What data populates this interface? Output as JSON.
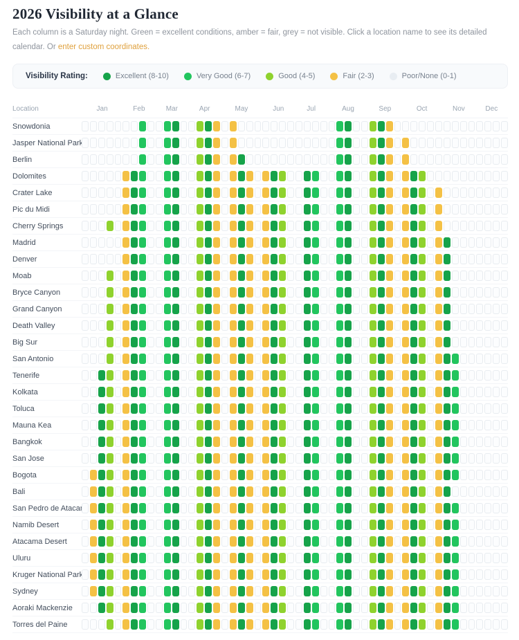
{
  "page_title": "2026 Visibility at a Glance",
  "subtitle": {
    "text": "Each column is a Saturday night. Green = excellent conditions, amber = fair, grey = not visible. Click a location name to see its detailed calendar. Or ",
    "link_text": "enter custom coordinates."
  },
  "legend": {
    "label": "Visibility Rating:",
    "items": [
      {
        "label": "Excellent (8-10)",
        "color": "#16a34a"
      },
      {
        "label": "Very Good (6-7)",
        "color": "#22c55e"
      },
      {
        "label": "Good (4-5)",
        "color": "#8fd22e"
      },
      {
        "label": "Fair (2-3)",
        "color": "#f4c145"
      },
      {
        "label": "Poor/None (0-1)",
        "color": "#e8edf2"
      }
    ]
  },
  "table": {
    "location_header": "Location"
  },
  "chart_data": {
    "type": "heatmap",
    "x_axis_note": "52 columns = Saturday nights of 2026, grouped by month",
    "months": [
      {
        "label": "Jan",
        "weeks": 5
      },
      {
        "label": "Feb",
        "weeks": 4
      },
      {
        "label": "Mar",
        "weeks": 4
      },
      {
        "label": "Apr",
        "weeks": 4
      },
      {
        "label": "May",
        "weeks": 5
      },
      {
        "label": "Jun",
        "weeks": 4
      },
      {
        "label": "Jul",
        "weeks": 4
      },
      {
        "label": "Aug",
        "weeks": 5
      },
      {
        "label": "Sep",
        "weeks": 4
      },
      {
        "label": "Oct",
        "weeks": 5
      },
      {
        "label": "Nov",
        "weeks": 4
      },
      {
        "label": "Dec",
        "weeks": 4
      }
    ],
    "cell_codes": {
      "E": "Excellent (8-10)",
      "V": "Very Good (6-7)",
      "G": "Good (4-5)",
      "F": "Fair (2-3)",
      ".": "Poor/None (0-1)"
    },
    "palette": {
      "E": "#16a34a",
      "V": "#22c55e",
      "G": "#8fd22e",
      "F": "#f4c145"
    },
    "rows": [
      {
        "location": "Snowdonia",
        "cells": ".......V..VE..GEF.F............VE..GEF.............."
      },
      {
        "location": "Jasper National Park",
        "cells": ".......V..VE..GEF.F............VE..GEF.F............"
      },
      {
        "location": "Berlin",
        "cells": ".......V..VE..GEF.FE...........VE..GEF.F............"
      },
      {
        "location": "Dolomites",
        "cells": ".....FEV..VE..GEF.FEF.FEG..EV..VE..GEF.FEG.........."
      },
      {
        "location": "Crater Lake",
        "cells": ".....FEV..VE..GEF.FEF.FEG..EV..VE..GEF.FEG.F........"
      },
      {
        "location": "Pic du Midi",
        "cells": ".....FEV..VE..GEF.FEF.FEG..EV..VE..GEF.FEG.F........"
      },
      {
        "location": "Cherry Springs",
        "cells": "...G.FEV..VE..GEF.FEF.FEG..EV..VE..GEF.FEG.F........"
      },
      {
        "location": "Madrid",
        "cells": ".....FEV..VE..GEF.FEF.FEG..EV..VE..GEF.FEG.FE......."
      },
      {
        "location": "Denver",
        "cells": ".....FEV..VE..GEF.FEF.FEG..EV..VE..GEF.FEG.FE......."
      },
      {
        "location": "Moab",
        "cells": "...G.FEV..VE..GEF.FEF.FEG..EV..VE..GEF.FEG.FE......."
      },
      {
        "location": "Bryce Canyon",
        "cells": "...G.FEV..VE..GEF.FEF.FEG..EV..VE..GEF.FEG.FE......."
      },
      {
        "location": "Grand Canyon",
        "cells": "...G.FEV..VE..GEF.FEF.FEG..EV..VE..GEF.FEG.FE......."
      },
      {
        "location": "Death Valley",
        "cells": "...G.FEV..VE..GEF.FEF.FEG..EV..VE..GEF.FEG.FE......."
      },
      {
        "location": "Big Sur",
        "cells": "...G.FEV..VE..GEF.FEF.FEG..EV..VE..GEF.FEG.FE......."
      },
      {
        "location": "San Antonio",
        "cells": "...G.FEV..VE..GEF.FEF.FEG..EV..VE..GEF.FEG.FEV......"
      },
      {
        "location": "Tenerife",
        "cells": "..EG.FEV..VE..GEF.FEF.FEG..EV..VE..GEF.FEG.FEV......"
      },
      {
        "location": "Kolkata",
        "cells": "..EG.FEV..VE..GEF.FEF.FEG..EV..VE..GEF.FEG.FEV......"
      },
      {
        "location": "Toluca",
        "cells": "..EG.FEV..VE..GEF.FEF.FEG..EV..VE..GEF.FEG.FEV......"
      },
      {
        "location": "Mauna Kea",
        "cells": "..EG.FEV..VE..GEF.FEF.FEG..EV..VE..GEF.FEG.FEV......"
      },
      {
        "location": "Bangkok",
        "cells": "..EG.FEV..VE..GEF.FEF.FEG..EV..VE..GEF.FEG.FEV......"
      },
      {
        "location": "San Jose",
        "cells": "..EG.FEV..VE..GEF.FEF.FEG..EV..VE..GEF.FEG.FEV......"
      },
      {
        "location": "Bogota",
        "cells": ".FEG.FEV..VE..GEF.FEF.FEG..EV..VE..GEF.FEG.FEV......"
      },
      {
        "location": "Bali",
        "cells": ".FEG.FEV..VE..GEF.FEF.FEG..EV..VE..GEF.FEG.FE......."
      },
      {
        "location": "San Pedro de Atacama",
        "cells": ".FEG.FEV..VE..GEF.FEF.FEG..EV..VE..GEF.FEG.FEV......"
      },
      {
        "location": "Namib Desert",
        "cells": ".FEG.FEV..VE..GEF.FEF.FEG..EV..VE..GEF.FEG.FEV......"
      },
      {
        "location": "Atacama Desert",
        "cells": ".FEG.FEV..VE..GEF.FEF.FEG..EV..VE..GEF.FEG.FEV......"
      },
      {
        "location": "Uluru",
        "cells": ".FEG.FEV..VE..GEF.FEF.FEG..EV..VE..GEF.FEG.FEV......"
      },
      {
        "location": "Kruger National Park",
        "cells": ".FEG.FEV..VE..GEF.FEF.FEG..EV..VE..GEF.FEG.FEV......"
      },
      {
        "location": "Sydney",
        "cells": ".FEG.FEV..VE..GEF.FEF.FEG..EV..VE..GEF.FEG.FEV......"
      },
      {
        "location": "Aoraki Mackenzie",
        "cells": "..EG.FEV..VE..GEF.FEF.FEG..EV..VE..GEF.FEG.FEV......"
      },
      {
        "location": "Torres del Paine",
        "cells": "...G.FEV..VE..GEF.FEF.FEG..EV..VE..GEF.FEG.FEV......"
      }
    ]
  }
}
